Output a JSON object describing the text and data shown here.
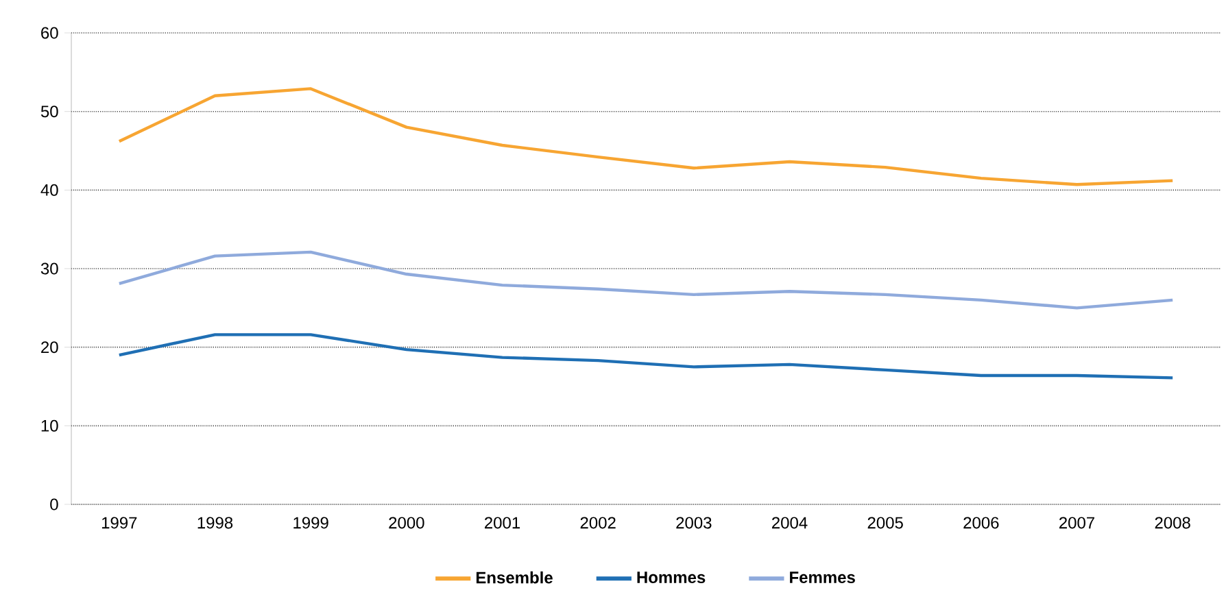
{
  "chart_data": {
    "type": "line",
    "categories": [
      "1997",
      "1998",
      "1999",
      "2000",
      "2001",
      "2002",
      "2003",
      "2004",
      "2005",
      "2006",
      "2007",
      "2008"
    ],
    "series": [
      {
        "name": "Ensemble",
        "color": "#f7a532",
        "values": [
          46.2,
          52.0,
          52.9,
          48.0,
          45.7,
          44.2,
          42.8,
          43.6,
          42.9,
          41.5,
          40.7,
          41.2
        ]
      },
      {
        "name": "Hommes",
        "color": "#1f6fb4",
        "values": [
          19.0,
          21.6,
          21.6,
          19.7,
          18.7,
          18.3,
          17.5,
          17.8,
          17.1,
          16.4,
          16.4,
          16.1
        ]
      },
      {
        "name": "Femmes",
        "color": "#8faadc",
        "values": [
          28.1,
          31.6,
          32.1,
          29.3,
          27.9,
          27.4,
          26.7,
          27.1,
          26.7,
          26.0,
          25.0,
          26.0
        ]
      }
    ],
    "ylim": [
      0,
      60
    ],
    "yticks": [
      0,
      10,
      20,
      30,
      40,
      50,
      60
    ],
    "grid": "y",
    "legend": "bottom",
    "marker": "none",
    "line_style": "solid"
  }
}
